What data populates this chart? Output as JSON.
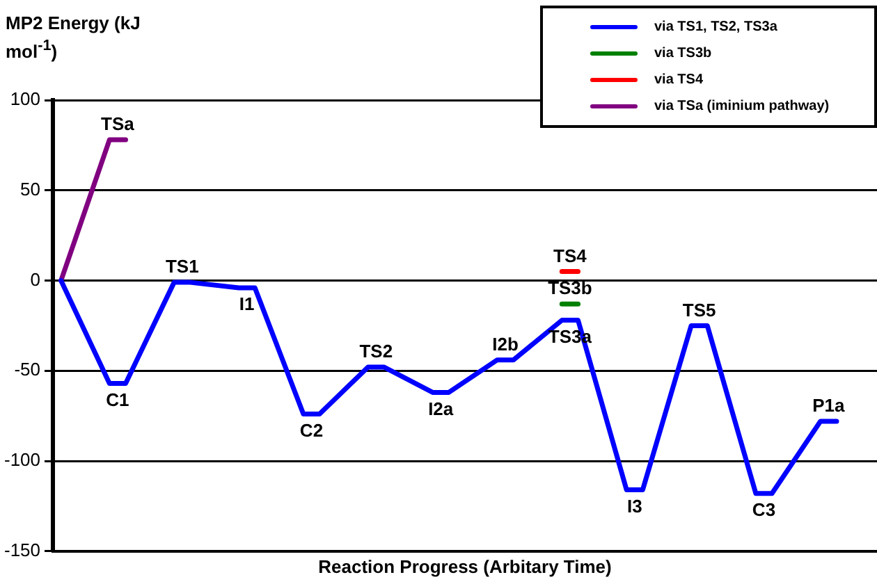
{
  "chart_data": {
    "type": "line",
    "ylabel": "MP2 Energy (kJ mol$^{-1}$)",
    "xlabel": "Reaction Progress (Arbitary Time)",
    "categories": [
      null,
      null,
      null,
      null,
      null,
      null,
      null,
      null,
      null,
      null,
      null,
      null,
      null,
      null,
      null,
      null,
      null,
      null,
      null,
      null,
      null,
      null,
      null,
      null,
      null,
      null,
      null,
      null,
      null,
      null,
      null,
      null,
      null,
      null,
      null,
      null,
      null,
      null,
      null,
      null,
      null,
      null,
      null,
      null,
      null,
      null,
      null,
      null,
      null,
      null,
      null
    ],
    "series": [
      {
        "name": "via TS1, TS2, TS3a",
        "color": "#0000ff",
        "values": [
          0,
          null,
          null,
          -57,
          -57,
          null,
          null,
          -1,
          -1,
          null,
          null,
          -4,
          -4,
          null,
          null,
          -74,
          -74,
          null,
          null,
          -48,
          -48,
          null,
          null,
          -62,
          -62,
          null,
          null,
          -44,
          -44,
          null,
          null,
          -22,
          -22,
          null,
          null,
          -116,
          -116,
          null,
          null,
          -25,
          -25,
          null,
          null,
          -118,
          -118,
          null,
          null,
          -78,
          -78,
          null,
          null
        ]
      },
      {
        "name": "via TS3b",
        "color": "#008000",
        "values": [
          null,
          null,
          null,
          null,
          null,
          null,
          null,
          null,
          null,
          null,
          null,
          null,
          null,
          null,
          null,
          null,
          null,
          null,
          null,
          null,
          null,
          null,
          null,
          null,
          null,
          null,
          null,
          null,
          null,
          null,
          null,
          -13,
          -13,
          null,
          null,
          null,
          null,
          null,
          null,
          null,
          null,
          null,
          null,
          null,
          null,
          null,
          null,
          null,
          null,
          null,
          null
        ]
      },
      {
        "name": "via TS4",
        "color": "#ff0000",
        "values": [
          null,
          null,
          null,
          null,
          null,
          null,
          null,
          null,
          null,
          null,
          null,
          null,
          null,
          null,
          null,
          null,
          null,
          null,
          null,
          null,
          null,
          null,
          null,
          null,
          null,
          null,
          null,
          null,
          null,
          null,
          null,
          5,
          5,
          null,
          null,
          null,
          null,
          null,
          null,
          null,
          null,
          null,
          null,
          null,
          null,
          null,
          null,
          null,
          null,
          null,
          null
        ]
      },
      {
        "name": "via TSa (iminium pathway)",
        "color": "#800080",
        "values": [
          0,
          null,
          null,
          78,
          78,
          null,
          null,
          null,
          null,
          null,
          null,
          null,
          null,
          null,
          null,
          null,
          null,
          null,
          null,
          null,
          null,
          null,
          null,
          null,
          null,
          null,
          null,
          null,
          null,
          null,
          null,
          null,
          null,
          null,
          null,
          null,
          null,
          null,
          null,
          null,
          null,
          null,
          null,
          null,
          null,
          null,
          null,
          null,
          null,
          null,
          null
        ]
      }
    ],
    "ylim": [
      -150,
      100
    ],
    "yticks": [
      -150,
      -100,
      -50,
      0,
      50,
      100
    ],
    "grid": "y",
    "legend": "top right",
    "tick_labels": "y",
    "marker": "none",
    "line_style": "solid",
    "annotations": [
      {
        "text": "TSa",
        "y": 78
      },
      {
        "text": "C1",
        "y": -57
      },
      {
        "text": "TS1",
        "y": -1
      },
      {
        "text": "I1",
        "y": -4
      },
      {
        "text": "C2",
        "y": -74
      },
      {
        "text": "TS2",
        "y": -48
      },
      {
        "text": "I2a",
        "y": -62
      },
      {
        "text": "I2b",
        "y": -44
      },
      {
        "text": "TS4",
        "y": 5
      },
      {
        "text": "TS3b",
        "y": -13
      },
      {
        "text": "TS3a",
        "y": -22
      },
      {
        "text": "I3",
        "y": -116
      },
      {
        "text": "TS5",
        "y": -25
      },
      {
        "text": "C3",
        "y": -118
      },
      {
        "text": "P1a",
        "y": -78
      }
    ]
  }
}
